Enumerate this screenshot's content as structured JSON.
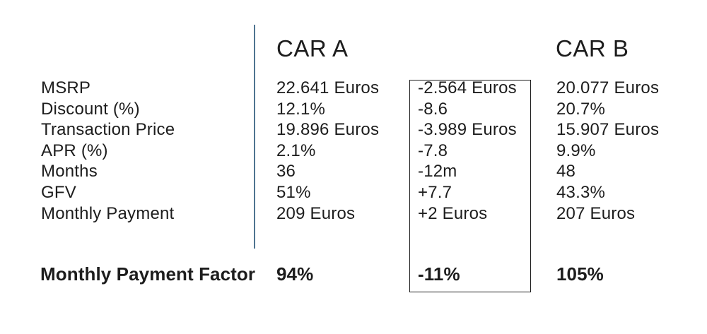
{
  "colors": {
    "background": "#ffffff",
    "text": "#1d1d1d",
    "divider": "#4e7390",
    "box_border": "#1d1d1d"
  },
  "headers": {
    "car_a": "CAR A",
    "car_b": "CAR B"
  },
  "table": {
    "rows": [
      {
        "label": "MSRP",
        "car_a": "22.641 Euros",
        "diff": "-2.564 Euros",
        "car_b": "20.077 Euros"
      },
      {
        "label": "Discount (%)",
        "car_a": "12.1%",
        "diff": "-8.6",
        "car_b": "20.7%"
      },
      {
        "label": "Transaction Price",
        "car_a": "19.896 Euros",
        "diff": "-3.989 Euros",
        "car_b": "15.907 Euros"
      },
      {
        "label": "APR (%)",
        "car_a": "2.1%",
        "diff": "-7.8",
        "car_b": "9.9%"
      },
      {
        "label": "Months",
        "car_a": "36",
        "diff": "-12m",
        "car_b": "48"
      },
      {
        "label": "GFV",
        "car_a": "51%",
        "diff": "+7.7",
        "car_b": "43.3%"
      },
      {
        "label": "Monthly Payment",
        "car_a": "209 Euros",
        "diff": "+2 Euros",
        "car_b": "207 Euros"
      }
    ],
    "factor": {
      "label": "Monthly Payment Factor",
      "car_a": "94%",
      "diff": "-11%",
      "car_b": "105%"
    }
  }
}
